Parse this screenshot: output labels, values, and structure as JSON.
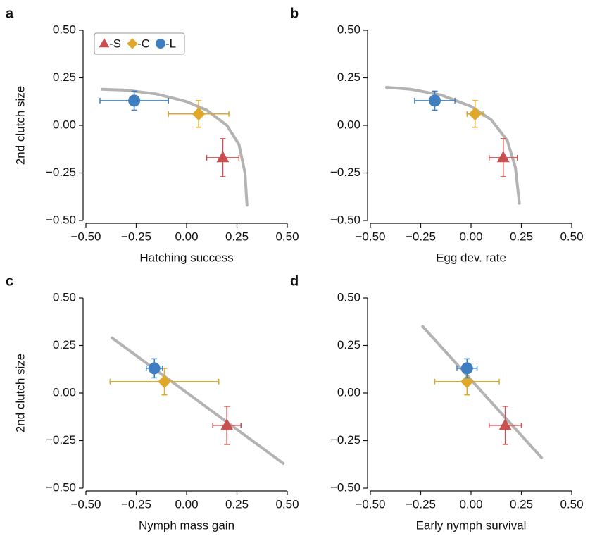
{
  "chart_data": [
    {
      "type": "scatter",
      "panel_label": "a",
      "xlabel": "Hatching success",
      "ylabel": "2nd clutch size",
      "xlim": [
        -0.5,
        0.5
      ],
      "ylim": [
        -0.5,
        0.5
      ],
      "xticks": [
        {
          "value": -0.5,
          "label": "−0.50"
        },
        {
          "value": -0.25,
          "label": "−0.25"
        },
        {
          "value": 0,
          "label": "0.00"
        },
        {
          "value": 0.25,
          "label": "0.25"
        },
        {
          "value": 0.5,
          "label": "0.50"
        }
      ],
      "yticks": [
        {
          "value": -0.5,
          "label": "−0.50"
        },
        {
          "value": -0.25,
          "label": "−0.25"
        },
        {
          "value": 0,
          "label": "0.00"
        },
        {
          "value": 0.25,
          "label": "0.25"
        },
        {
          "value": 0.5,
          "label": "0.50"
        }
      ],
      "legend": "upper left",
      "series": [
        {
          "name": "-S",
          "marker": "triangle",
          "color": "#c9504f",
          "x": [
            0.18
          ],
          "y": [
            -0.17
          ],
          "xerr": [
            0.08
          ],
          "yerr": [
            0.1
          ]
        },
        {
          "name": "-C",
          "marker": "diamond",
          "color": "#e0a828",
          "x": [
            0.06
          ],
          "y": [
            0.06
          ],
          "xerr": [
            0.15
          ],
          "yerr": [
            0.07
          ]
        },
        {
          "name": "-L",
          "marker": "circle",
          "color": "#3f7fc1",
          "x": [
            -0.26
          ],
          "y": [
            0.13
          ],
          "xerr": [
            0.17
          ],
          "yerr": [
            0.05
          ]
        }
      ],
      "fit": {
        "color": "#b3b3b3",
        "x": [
          -0.42,
          -0.3,
          -0.15,
          0,
          0.1,
          0.2,
          0.26,
          0.29,
          0.3
        ],
        "y": [
          0.19,
          0.185,
          0.165,
          0.125,
          0.08,
          0.0,
          -0.1,
          -0.25,
          -0.42
        ]
      }
    },
    {
      "type": "scatter",
      "panel_label": "b",
      "xlabel": "Egg dev. rate",
      "xlim": [
        -0.5,
        0.5
      ],
      "ylim": [
        -0.5,
        0.5
      ],
      "xticks": [
        {
          "value": -0.5,
          "label": "−0.50"
        },
        {
          "value": -0.25,
          "label": "−0.25"
        },
        {
          "value": 0,
          "label": "0.00"
        },
        {
          "value": 0.25,
          "label": "0.25"
        },
        {
          "value": 0.5,
          "label": "0.50"
        }
      ],
      "yticks": [
        {
          "value": -0.5,
          "label": "−0.50"
        },
        {
          "value": -0.25,
          "label": "−0.25"
        },
        {
          "value": 0,
          "label": "0.00"
        },
        {
          "value": 0.25,
          "label": "0.25"
        },
        {
          "value": 0.5,
          "label": "0.50"
        }
      ],
      "series": [
        {
          "marker": "triangle",
          "color": "#c9504f",
          "x": [
            0.16
          ],
          "y": [
            -0.17
          ],
          "xerr": [
            0.07
          ],
          "yerr": [
            0.1
          ]
        },
        {
          "marker": "diamond",
          "color": "#e0a828",
          "x": [
            0.02
          ],
          "y": [
            0.06
          ],
          "xerr": [
            0.04
          ],
          "yerr": [
            0.07
          ]
        },
        {
          "marker": "circle",
          "color": "#3f7fc1",
          "x": [
            -0.18
          ],
          "y": [
            0.13
          ],
          "xerr": [
            0.1
          ],
          "yerr": [
            0.05
          ]
        }
      ],
      "fit": {
        "color": "#b3b3b3",
        "x": [
          -0.42,
          -0.3,
          -0.15,
          0,
          0.1,
          0.18,
          0.22,
          0.24
        ],
        "y": [
          0.2,
          0.19,
          0.16,
          0.1,
          0.03,
          -0.08,
          -0.22,
          -0.41
        ]
      }
    },
    {
      "type": "scatter",
      "panel_label": "c",
      "xlabel": "Nymph mass gain",
      "ylabel": "2nd clutch size",
      "xlim": [
        -0.5,
        0.5
      ],
      "ylim": [
        -0.5,
        0.5
      ],
      "xticks": [
        {
          "value": -0.5,
          "label": "−0.50"
        },
        {
          "value": -0.25,
          "label": "−0.25"
        },
        {
          "value": 0,
          "label": "0.00"
        },
        {
          "value": 0.25,
          "label": "0.25"
        },
        {
          "value": 0.5,
          "label": "0.50"
        }
      ],
      "yticks": [
        {
          "value": -0.5,
          "label": "−0.50"
        },
        {
          "value": -0.25,
          "label": "−0.25"
        },
        {
          "value": 0,
          "label": "0.00"
        },
        {
          "value": 0.25,
          "label": "0.25"
        },
        {
          "value": 0.5,
          "label": "0.50"
        }
      ],
      "series": [
        {
          "marker": "triangle",
          "color": "#c9504f",
          "x": [
            0.2
          ],
          "y": [
            -0.17
          ],
          "xerr": [
            0.07
          ],
          "yerr": [
            0.1
          ]
        },
        {
          "marker": "diamond",
          "color": "#e0a828",
          "x": [
            -0.11
          ],
          "y": [
            0.06
          ],
          "xerr": [
            0.27
          ],
          "yerr": [
            0.07
          ]
        },
        {
          "marker": "circle",
          "color": "#3f7fc1",
          "x": [
            -0.16
          ],
          "y": [
            0.13
          ],
          "xerr": [
            0.04
          ],
          "yerr": [
            0.05
          ]
        }
      ],
      "fit": {
        "color": "#b3b3b3",
        "x": [
          -0.37,
          0.48
        ],
        "y": [
          0.29,
          -0.37
        ]
      }
    },
    {
      "type": "scatter",
      "panel_label": "d",
      "xlabel": "Early nymph survival",
      "xlim": [
        -0.5,
        0.5
      ],
      "ylim": [
        -0.5,
        0.5
      ],
      "xticks": [
        {
          "value": -0.5,
          "label": "−0.50"
        },
        {
          "value": -0.25,
          "label": "−0.25"
        },
        {
          "value": 0,
          "label": "0.00"
        },
        {
          "value": 0.25,
          "label": "0.25"
        },
        {
          "value": 0.5,
          "label": "0.50"
        }
      ],
      "yticks": [
        {
          "value": -0.5,
          "label": "−0.50"
        },
        {
          "value": -0.25,
          "label": "−0.25"
        },
        {
          "value": 0,
          "label": "0.00"
        },
        {
          "value": 0.25,
          "label": "0.25"
        },
        {
          "value": 0.5,
          "label": "0.50"
        }
      ],
      "series": [
        {
          "marker": "triangle",
          "color": "#c9504f",
          "x": [
            0.17
          ],
          "y": [
            -0.17
          ],
          "xerr": [
            0.08
          ],
          "yerr": [
            0.1
          ]
        },
        {
          "marker": "diamond",
          "color": "#e0a828",
          "x": [
            -0.02
          ],
          "y": [
            0.06
          ],
          "xerr": [
            0.16
          ],
          "yerr": [
            0.07
          ]
        },
        {
          "marker": "circle",
          "color": "#3f7fc1",
          "x": [
            -0.02
          ],
          "y": [
            0.13
          ],
          "xerr": [
            0.05
          ],
          "yerr": [
            0.05
          ]
        }
      ],
      "fit": {
        "color": "#b3b3b3",
        "x": [
          -0.24,
          0.35
        ],
        "y": [
          0.35,
          -0.34
        ]
      }
    }
  ]
}
